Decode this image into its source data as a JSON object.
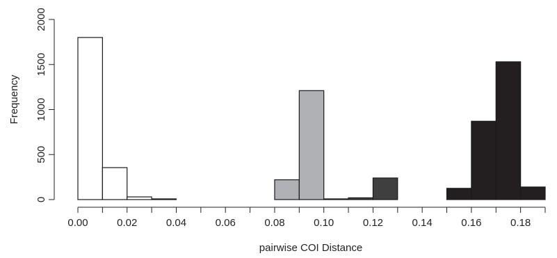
{
  "chart_data": {
    "type": "bar",
    "title": "",
    "xlabel": "pairwise COI Distance",
    "ylabel": "Frequency",
    "xlim": [
      0.0,
      0.19
    ],
    "ylim": [
      0,
      2000
    ],
    "bin_width": 0.01,
    "x_ticks": [
      "0.00",
      "0.02",
      "0.04",
      "0.06",
      "0.08",
      "0.10",
      "0.12",
      "0.14",
      "0.16",
      "0.18"
    ],
    "x_tick_values": [
      0.0,
      0.02,
      0.04,
      0.06,
      0.08,
      0.1,
      0.12,
      0.14,
      0.16,
      0.18
    ],
    "y_ticks": [
      "0",
      "500",
      "1000",
      "1500",
      "2000"
    ],
    "y_tick_values": [
      0,
      500,
      1000,
      1500,
      2000
    ],
    "colors": {
      "white": "#ffffff",
      "light_gray": "#b0b1b4",
      "dark_gray": "#3f3f3f",
      "black": "#231f20",
      "stroke": "#1a1a1a"
    },
    "bins": [
      {
        "start": 0.0,
        "end": 0.01,
        "value": 1800,
        "color": "white"
      },
      {
        "start": 0.01,
        "end": 0.02,
        "value": 355,
        "color": "white"
      },
      {
        "start": 0.02,
        "end": 0.03,
        "value": 30,
        "color": "white"
      },
      {
        "start": 0.03,
        "end": 0.04,
        "value": 8,
        "color": "white"
      },
      {
        "start": 0.04,
        "end": 0.05,
        "value": 0,
        "color": "white"
      },
      {
        "start": 0.05,
        "end": 0.06,
        "value": 0,
        "color": "white"
      },
      {
        "start": 0.06,
        "end": 0.07,
        "value": 0,
        "color": "white"
      },
      {
        "start": 0.07,
        "end": 0.08,
        "value": 0,
        "color": "white"
      },
      {
        "start": 0.08,
        "end": 0.09,
        "value": 220,
        "color": "light_gray"
      },
      {
        "start": 0.09,
        "end": 0.1,
        "value": 1210,
        "color": "light_gray"
      },
      {
        "start": 0.1,
        "end": 0.11,
        "value": 8,
        "color": "light_gray"
      },
      {
        "start": 0.11,
        "end": 0.12,
        "value": 20,
        "color": "dark_gray"
      },
      {
        "start": 0.12,
        "end": 0.13,
        "value": 240,
        "color": "dark_gray"
      },
      {
        "start": 0.13,
        "end": 0.14,
        "value": 0,
        "color": "dark_gray"
      },
      {
        "start": 0.14,
        "end": 0.15,
        "value": 0,
        "color": "black"
      },
      {
        "start": 0.15,
        "end": 0.16,
        "value": 125,
        "color": "black"
      },
      {
        "start": 0.16,
        "end": 0.17,
        "value": 870,
        "color": "black"
      },
      {
        "start": 0.17,
        "end": 0.18,
        "value": 1530,
        "color": "black"
      },
      {
        "start": 0.18,
        "end": 0.19,
        "value": 140,
        "color": "black"
      }
    ]
  }
}
